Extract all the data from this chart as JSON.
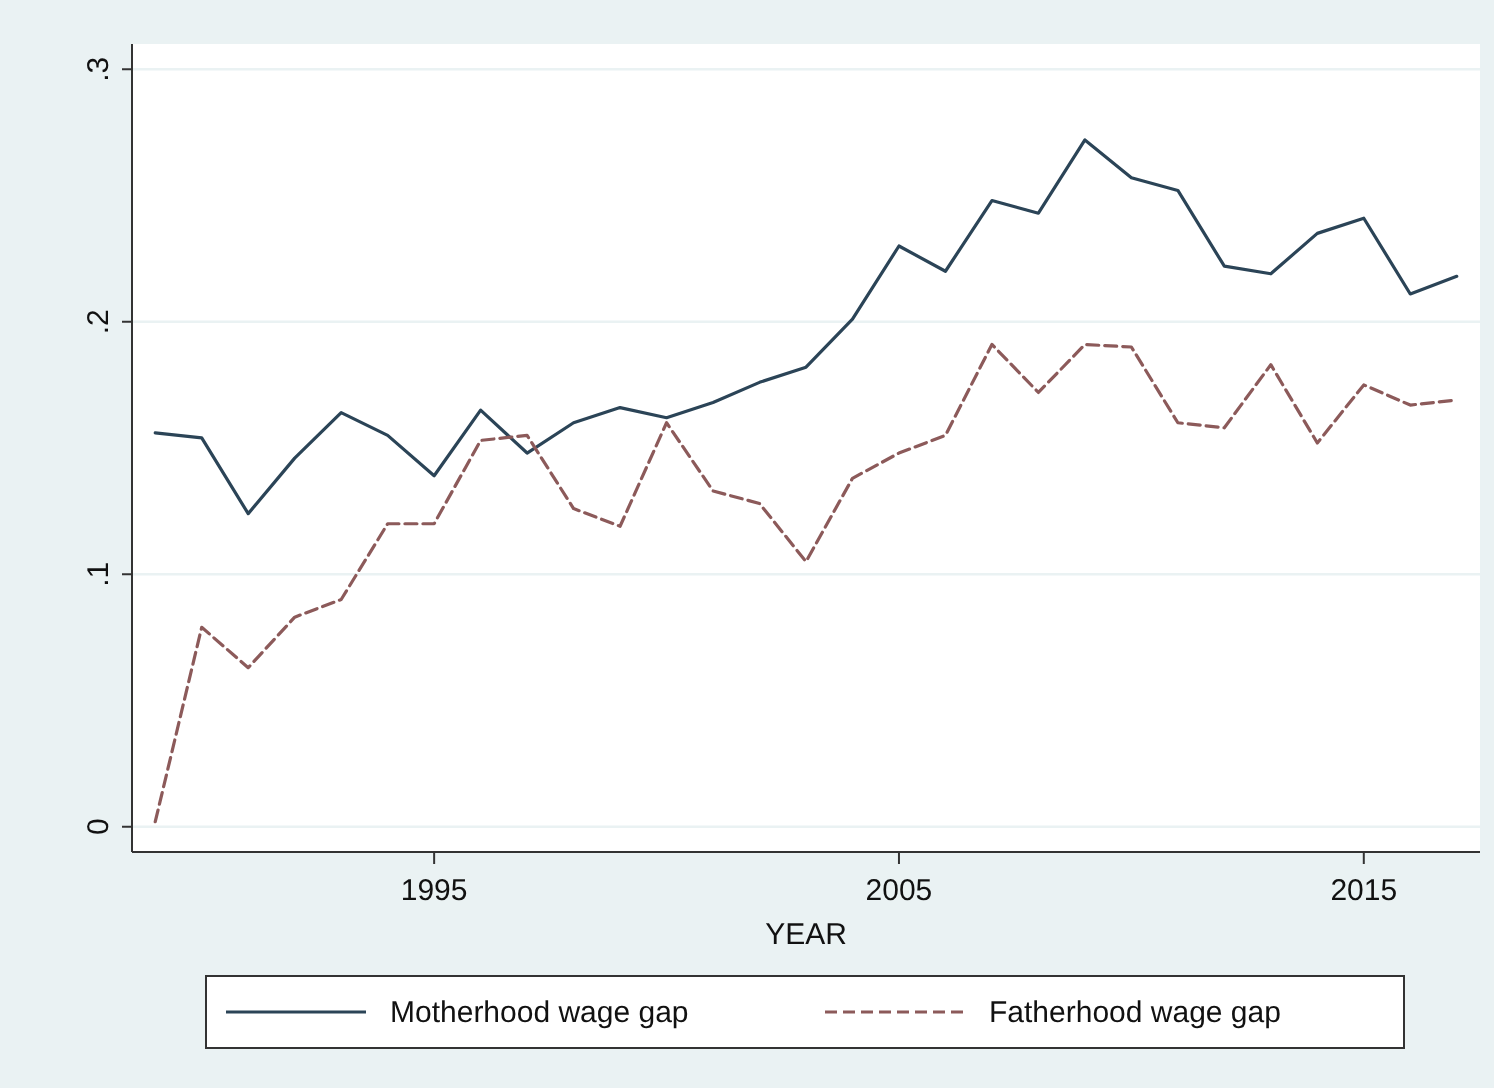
{
  "chart_data": {
    "type": "line",
    "xlabel": "YEAR",
    "x": [
      1989,
      1990,
      1991,
      1992,
      1993,
      1994,
      1995,
      1996,
      1997,
      1998,
      1999,
      2000,
      2001,
      2002,
      2003,
      2004,
      2005,
      2006,
      2007,
      2008,
      2009,
      2010,
      2011,
      2012,
      2013,
      2014,
      2015,
      2016,
      2017
    ],
    "series": [
      {
        "name": "Motherhood wage gap",
        "color": "#2b4457",
        "line_style": "solid",
        "values": [
          0.156,
          0.154,
          0.124,
          0.146,
          0.164,
          0.155,
          0.139,
          0.165,
          0.148,
          0.16,
          0.166,
          0.162,
          0.168,
          0.176,
          0.182,
          0.201,
          0.23,
          0.22,
          0.248,
          0.243,
          0.272,
          0.257,
          0.252,
          0.222,
          0.219,
          0.235,
          0.241,
          0.211,
          0.218
        ]
      },
      {
        "name": "Fatherhood wage gap",
        "color": "#8c5a5a",
        "line_style": "dashed",
        "values": [
          0.002,
          0.079,
          0.063,
          0.083,
          0.09,
          0.12,
          0.12,
          0.153,
          0.155,
          0.126,
          0.119,
          0.16,
          0.133,
          0.128,
          0.105,
          0.138,
          0.148,
          0.155,
          0.191,
          0.172,
          0.191,
          0.19,
          0.16,
          0.158,
          0.183,
          0.152,
          0.175,
          0.167,
          0.169
        ]
      }
    ],
    "xlim": [
      1988.5,
      2017.5
    ],
    "xticks": [
      1995,
      2005,
      2015
    ],
    "ylim": [
      -0.01,
      0.31
    ],
    "yticks": [
      0,
      {
        "value": 0.1,
        "label": ".1"
      },
      {
        "value": 0.2,
        "label": ".2"
      },
      {
        "value": 0.3,
        "label": ".3"
      }
    ],
    "grid": "y",
    "legend": "bottom",
    "marker": "none"
  }
}
